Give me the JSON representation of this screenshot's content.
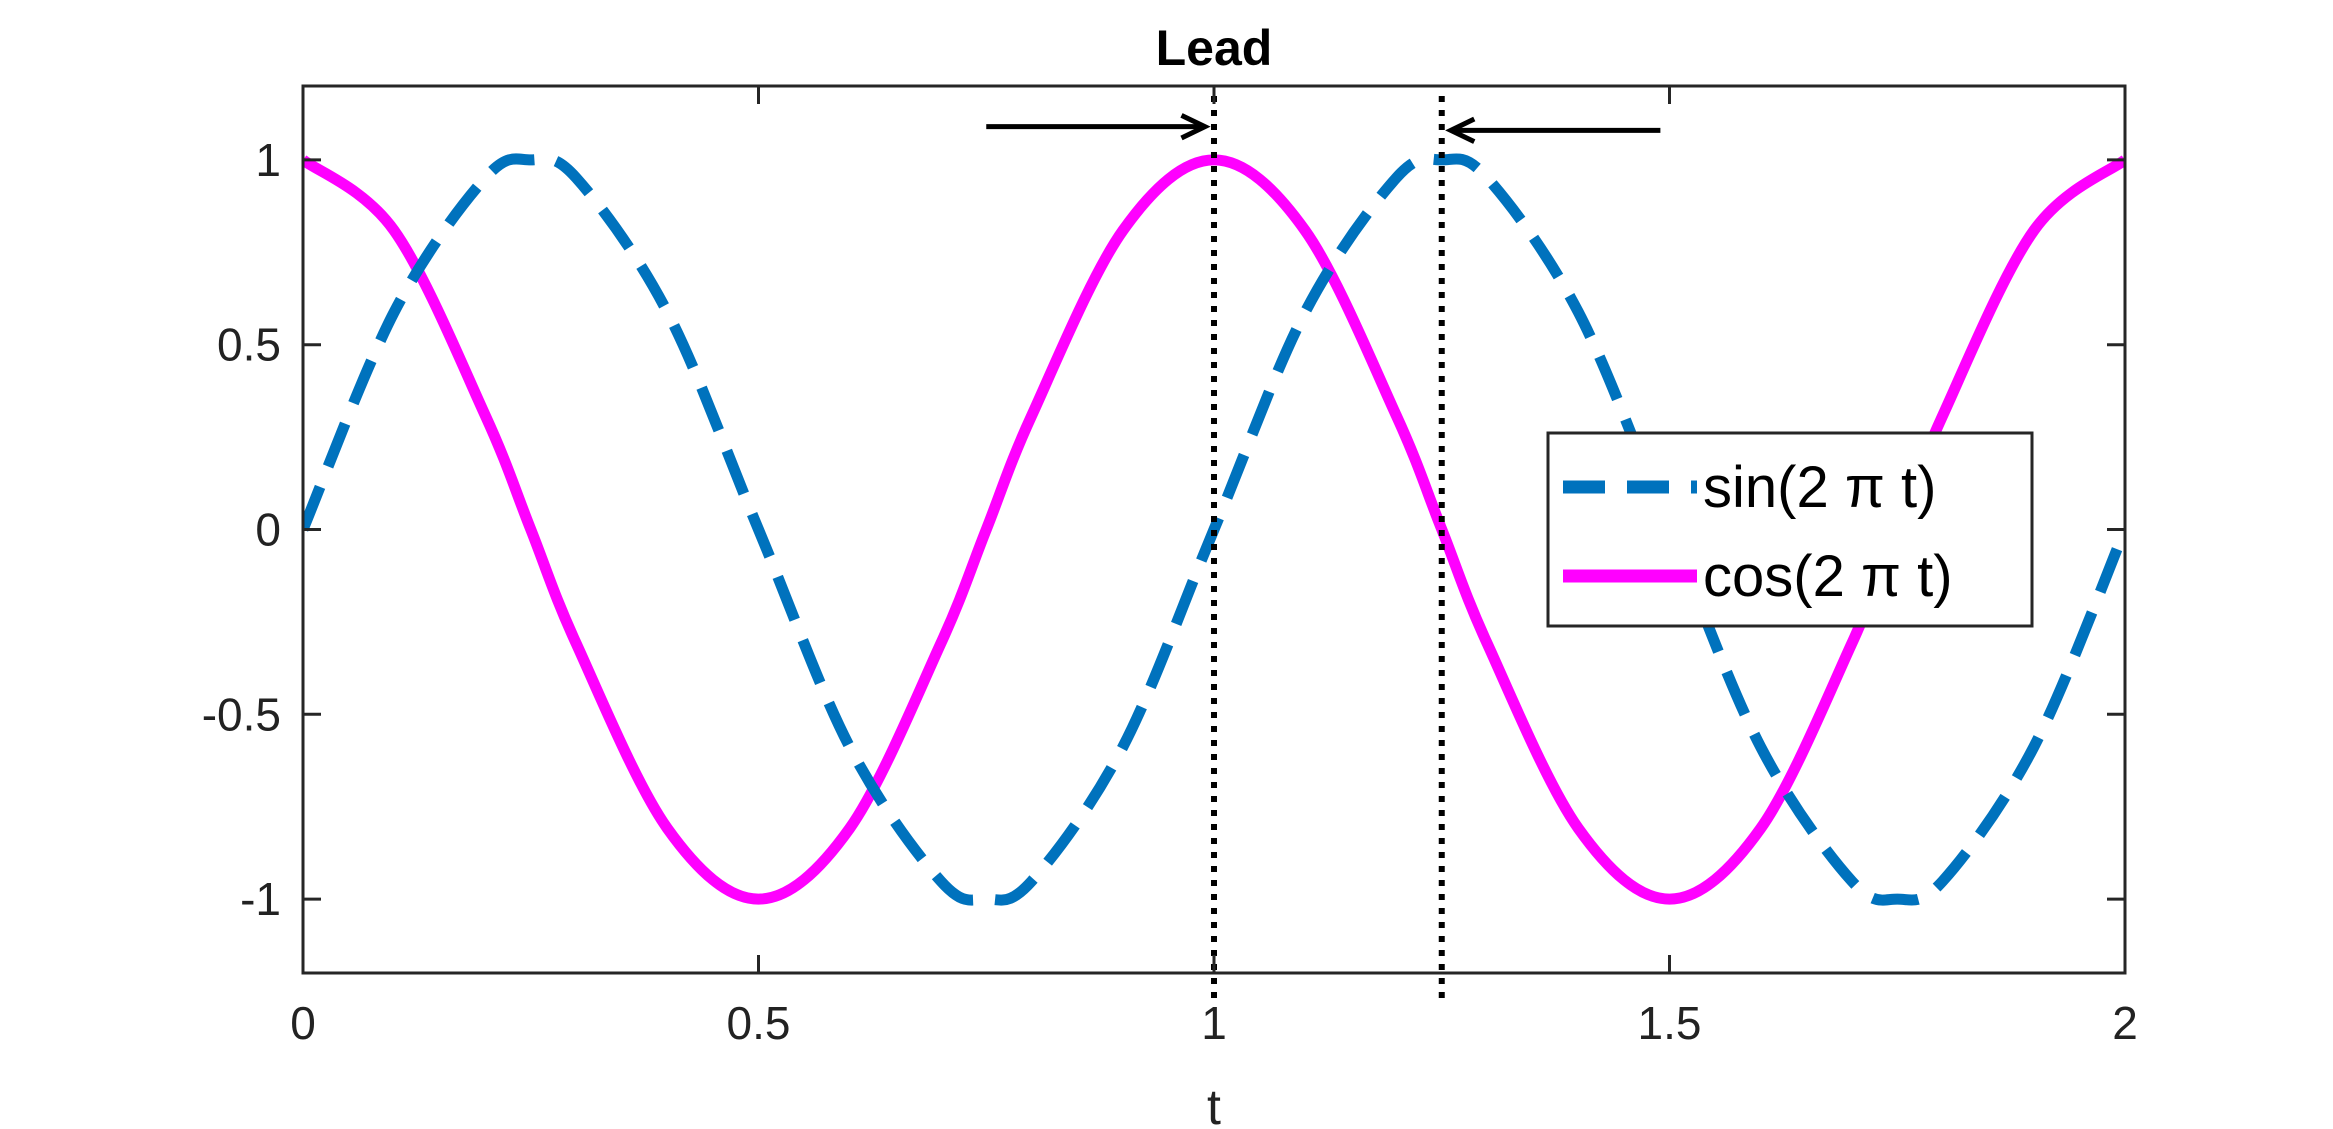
{
  "chart_data": {
    "type": "line",
    "title": "Lead",
    "xlabel": "t",
    "ylabel": "",
    "xlim": [
      0,
      2
    ],
    "ylim": [
      -1.2,
      1.2
    ],
    "x_ticks": [
      0,
      0.5,
      1,
      1.5,
      2
    ],
    "x_tick_labels": [
      "0",
      "0.5",
      "1",
      "1.5",
      "2"
    ],
    "y_ticks": [
      -1,
      -0.5,
      0,
      0.5,
      1
    ],
    "y_tick_labels": [
      "-1",
      "-0.5",
      "0",
      "0.5",
      "1"
    ],
    "grid": false,
    "legend_position": "right",
    "x": [
      0,
      0.1,
      0.2,
      0.25,
      0.3,
      0.4,
      0.5,
      0.6,
      0.7,
      0.75,
      0.8,
      0.9,
      1,
      1.1,
      1.2,
      1.25,
      1.3,
      1.4,
      1.5,
      1.6,
      1.7,
      1.75,
      1.8,
      1.9,
      2
    ],
    "series": [
      {
        "name": "sin(2 π t)",
        "color": "#0072BD",
        "style": "dashed",
        "values": [
          0,
          0.588,
          0.951,
          1,
          0.951,
          0.588,
          0,
          -0.588,
          -0.951,
          -1,
          -0.951,
          -0.588,
          0,
          0.588,
          0.951,
          1,
          0.951,
          0.588,
          0,
          -0.588,
          -0.951,
          -1,
          -0.951,
          -0.588,
          0
        ]
      },
      {
        "name": "cos(2 π t)",
        "color": "#FF00FF",
        "style": "solid",
        "values": [
          1,
          0.809,
          0.309,
          0,
          -0.309,
          -0.809,
          -1,
          -0.809,
          -0.309,
          0,
          0.309,
          0.809,
          1,
          0.809,
          0.309,
          0,
          -0.309,
          -0.809,
          -1,
          -0.809,
          -0.309,
          0,
          0.309,
          0.809,
          1
        ]
      }
    ],
    "annotations": {
      "vertical_lines": [
        {
          "x": 1,
          "style": "dotted",
          "color": "#000000"
        },
        {
          "x": 1.25,
          "style": "dotted",
          "color": "#000000"
        }
      ],
      "arrows": [
        {
          "from": [
            0.75,
            1.09
          ],
          "to": [
            0.99,
            1.09
          ],
          "color": "#000000"
        },
        {
          "from": [
            1.49,
            1.08
          ],
          "to": [
            1.26,
            1.08
          ],
          "color": "#000000"
        }
      ]
    }
  }
}
